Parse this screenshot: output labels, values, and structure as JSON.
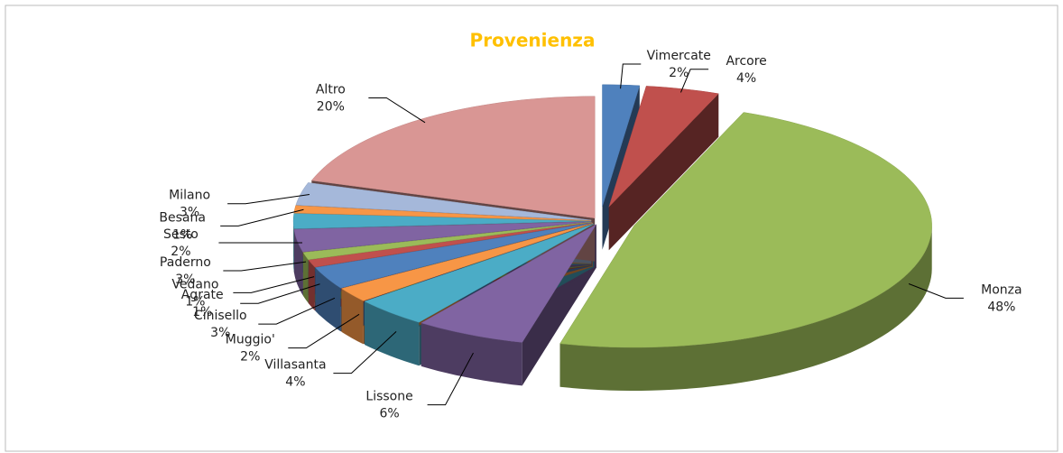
{
  "chart_data": {
    "type": "pie",
    "title": "Provenienza",
    "categories": [
      "Vimercate",
      "Arcore",
      "Monza",
      "Lissone",
      "Villasanta",
      "Muggio'",
      "Cinisello",
      "Agrate",
      "Vedano",
      "Paderno",
      "Sesto",
      "Besana",
      "Milano",
      "Altro"
    ],
    "values": [
      2,
      4,
      48,
      6,
      4,
      2,
      3,
      1,
      1,
      3,
      2,
      1,
      3,
      20
    ],
    "value_labels": [
      "2%",
      "4%",
      "48%",
      "6%",
      "4%",
      "2%",
      "3%",
      "1%",
      "1%",
      "3%",
      "2%",
      "1%",
      "3%",
      "20%"
    ],
    "colors": [
      "#4F81BD",
      "#C0504D",
      "#9BBB59",
      "#8064A2",
      "#4BACC6",
      "#F79646",
      "#4F81BD",
      "#C0504D",
      "#9BBB59",
      "#8064A2",
      "#4BACC6",
      "#F79646",
      "#A5B8DA",
      "#D99694"
    ]
  }
}
